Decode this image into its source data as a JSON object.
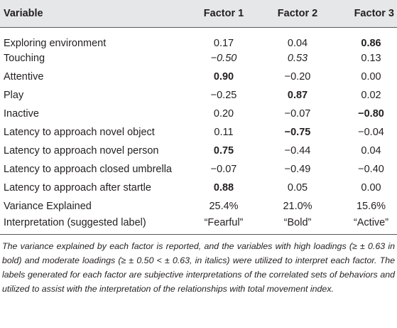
{
  "table": {
    "headers": [
      "Variable",
      "Factor 1",
      "Factor 2",
      "Factor 3"
    ],
    "rows": [
      {
        "label": "Exploring environment",
        "cells": [
          {
            "v": "0.17",
            "s": ""
          },
          {
            "v": "0.04",
            "s": ""
          },
          {
            "v": "0.86",
            "s": "b"
          }
        ]
      },
      {
        "label": "Touching",
        "cells": [
          {
            "v": "−0.50",
            "s": "i"
          },
          {
            "v": "0.53",
            "s": "i"
          },
          {
            "v": "0.13",
            "s": ""
          }
        ]
      },
      {
        "label": "Attentive",
        "cells": [
          {
            "v": "0.90",
            "s": "b"
          },
          {
            "v": "−0.20",
            "s": ""
          },
          {
            "v": "0.00",
            "s": ""
          }
        ]
      },
      {
        "label": "Play",
        "cells": [
          {
            "v": "−0.25",
            "s": ""
          },
          {
            "v": "0.87",
            "s": "b"
          },
          {
            "v": "0.02",
            "s": ""
          }
        ]
      },
      {
        "label": "Inactive",
        "cells": [
          {
            "v": "0.20",
            "s": ""
          },
          {
            "v": "−0.07",
            "s": ""
          },
          {
            "v": "−0.80",
            "s": "b"
          }
        ]
      },
      {
        "label": "Latency to approach novel object",
        "cells": [
          {
            "v": "0.11",
            "s": ""
          },
          {
            "v": "−0.75",
            "s": "b"
          },
          {
            "v": "−0.04",
            "s": ""
          }
        ]
      },
      {
        "label": "Latency to approach novel person",
        "cells": [
          {
            "v": "0.75",
            "s": "b"
          },
          {
            "v": "−0.44",
            "s": ""
          },
          {
            "v": "0.04",
            "s": ""
          }
        ]
      },
      {
        "label": "Latency to approach closed umbrella",
        "cells": [
          {
            "v": "−0.07",
            "s": ""
          },
          {
            "v": "−0.49",
            "s": ""
          },
          {
            "v": "−0.40",
            "s": ""
          }
        ]
      },
      {
        "label": "Latency to approach after startle",
        "cells": [
          {
            "v": "0.88",
            "s": "b"
          },
          {
            "v": "0.05",
            "s": ""
          },
          {
            "v": "0.00",
            "s": ""
          }
        ]
      },
      {
        "label": "Variance Explained",
        "cells": [
          {
            "v": "25.4%",
            "s": ""
          },
          {
            "v": "21.0%",
            "s": ""
          },
          {
            "v": "15.6%",
            "s": ""
          }
        ]
      },
      {
        "label": "Interpretation (suggested label)",
        "cells": [
          {
            "v": "“Fearful”",
            "s": ""
          },
          {
            "v": "“Bold”",
            "s": ""
          },
          {
            "v": "“Active”",
            "s": ""
          }
        ]
      }
    ]
  },
  "footnote": "The variance explained by each factor is reported, and the variables with high loadings (≥ ± 0.63 in bold) and moderate loadings (≥ ± 0.50 < ± 0.63, in italics) were utilized to interpret each factor. The labels generated for each factor are subjective interpretations of the correlated sets of behaviors and utilized to assist with the interpretation of the relationships with total movement index."
}
